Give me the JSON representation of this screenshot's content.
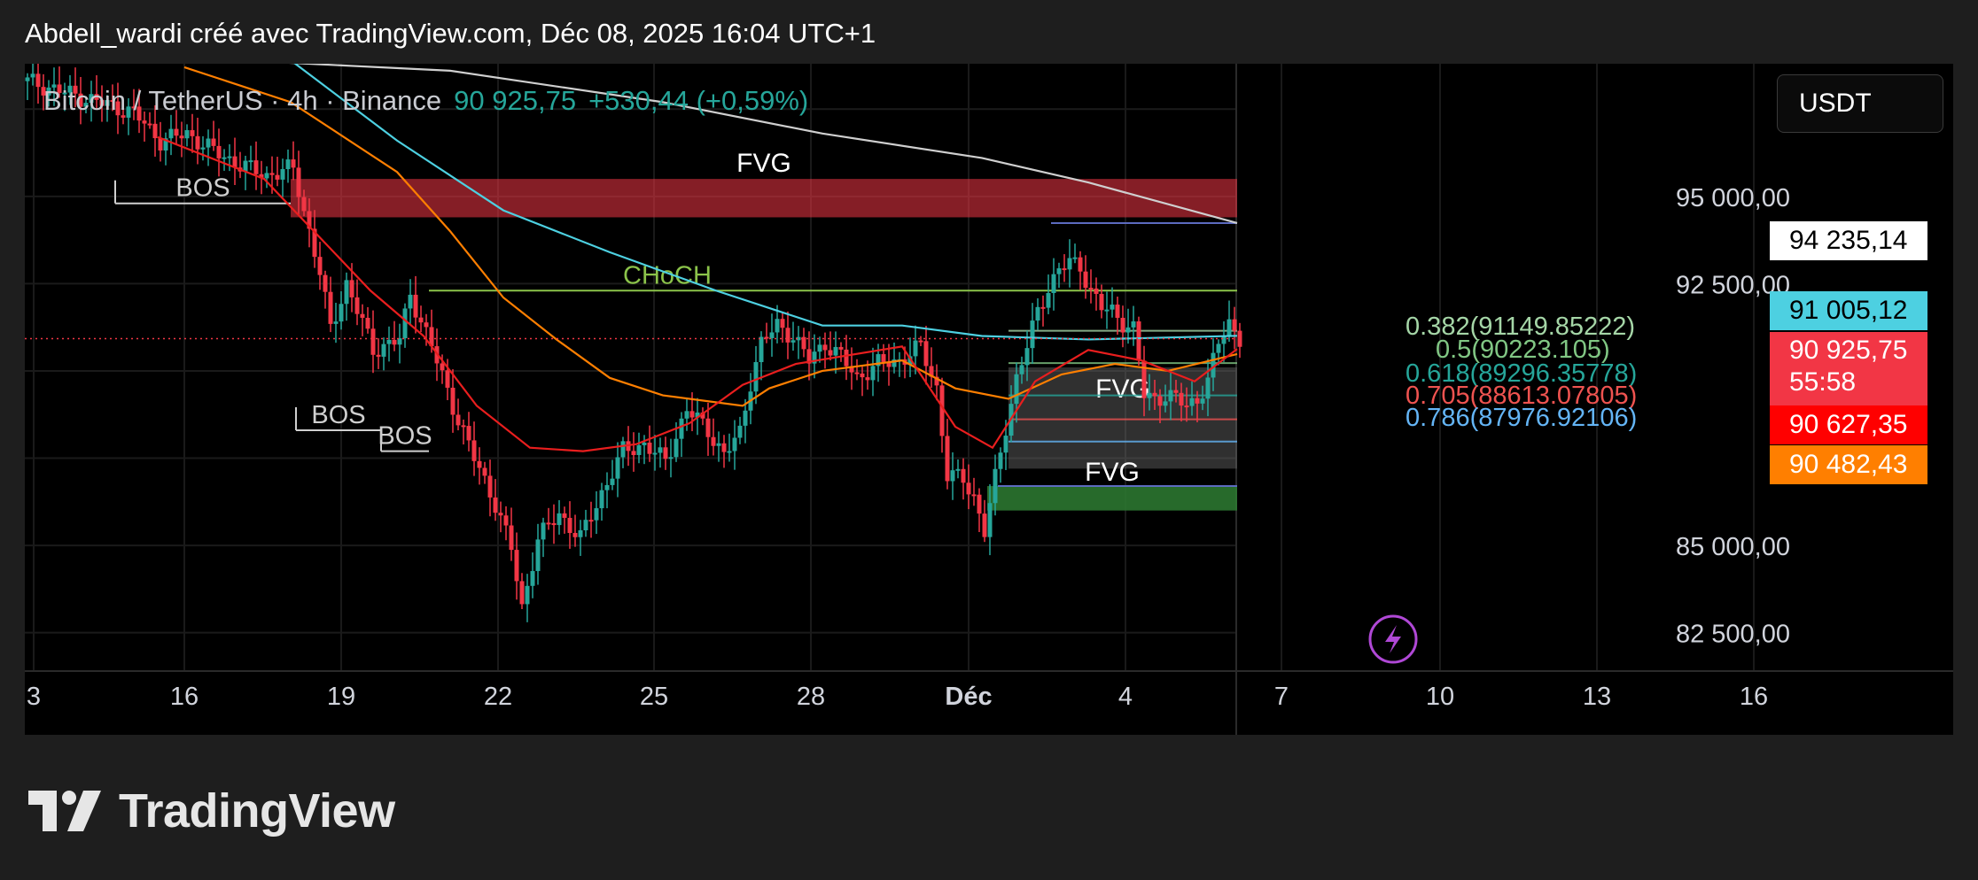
{
  "header": {
    "title": "Abdell_wardi créé avec TradingView.com, Déc 08, 2025 16:04 UTC+1"
  },
  "symbol": {
    "name": "Bitcoin / TetherUS · 4h · Binance",
    "price": "90 925,75",
    "change": "+530,44 (+0,59%)"
  },
  "currency_button": "USDT",
  "brand": {
    "name": "TradingView"
  },
  "price_labels": [
    {
      "text": "94 235,14",
      "bg": "#ffffff",
      "fg": "#000000"
    },
    {
      "text": "91 005,12",
      "bg": "#4dd0e1",
      "fg": "#000000"
    },
    {
      "text": "90 925,75",
      "bg": "#f23645",
      "fg": "#ffffff"
    },
    {
      "text": "55:58",
      "bg": "#f23645",
      "fg": "#ffffff"
    },
    {
      "text": "90 627,35",
      "bg": "#ff0000",
      "fg": "#ffffff"
    },
    {
      "text": "90 482,43",
      "bg": "#ff7f00",
      "fg": "#ffffff"
    }
  ],
  "chart_data": {
    "type": "candlestick",
    "timeframe": "4h",
    "x_tick_labels": [
      "3",
      "16",
      "19",
      "22",
      "25",
      "28",
      "Déc",
      "4",
      "7",
      "10",
      "13",
      "16"
    ],
    "y_tick_labels": [
      "95 000,00",
      "92 500,00",
      "85 000,00",
      "82 500,00"
    ],
    "y_ticks": [
      95000,
      92500,
      85000,
      82500
    ],
    "ylim": [
      81400,
      98800
    ],
    "grid": true,
    "current_price": 90925.75,
    "colors": {
      "up": "#26a69a",
      "down": "#f23645"
    },
    "candles_close_path": [
      [
        0,
        98300
      ],
      [
        20,
        97400
      ],
      [
        25,
        96600
      ],
      [
        30,
        96800
      ],
      [
        35,
        96300
      ],
      [
        40,
        95900
      ],
      [
        45,
        95600
      ],
      [
        50,
        95800
      ],
      [
        52,
        94600
      ],
      [
        55,
        92800
      ],
      [
        57,
        91200
      ],
      [
        60,
        92500
      ],
      [
        65,
        90600
      ],
      [
        70,
        90900
      ],
      [
        72,
        92200
      ],
      [
        76,
        90700
      ],
      [
        80,
        89000
      ],
      [
        84,
        87500
      ],
      [
        88,
        86200
      ],
      [
        91,
        84900
      ],
      [
        93,
        83200
      ],
      [
        96,
        85200
      ],
      [
        100,
        85900
      ],
      [
        104,
        85200
      ],
      [
        108,
        86500
      ],
      [
        112,
        87700
      ],
      [
        116,
        87900
      ],
      [
        120,
        87400
      ],
      [
        124,
        88900
      ],
      [
        128,
        88300
      ],
      [
        131,
        87600
      ],
      [
        134,
        88200
      ],
      [
        136,
        89700
      ],
      [
        138,
        90800
      ],
      [
        141,
        91300
      ],
      [
        144,
        91000
      ],
      [
        147,
        90300
      ],
      [
        150,
        90800
      ],
      [
        153,
        90400
      ],
      [
        156,
        89800
      ],
      [
        160,
        90200
      ],
      [
        164,
        90300
      ],
      [
        168,
        90700
      ],
      [
        171,
        89500
      ],
      [
        173,
        87000
      ],
      [
        176,
        86900
      ],
      [
        178,
        86400
      ],
      [
        180,
        85400
      ],
      [
        182,
        86900
      ],
      [
        184,
        88400
      ],
      [
        186,
        89800
      ],
      [
        188,
        90700
      ],
      [
        190,
        91700
      ],
      [
        192,
        92400
      ],
      [
        194,
        92900
      ],
      [
        196,
        93100
      ],
      [
        198,
        93000
      ],
      [
        200,
        92300
      ],
      [
        202,
        91800
      ],
      [
        204,
        91700
      ],
      [
        206,
        91400
      ],
      [
        208,
        91200
      ],
      [
        210,
        89300
      ],
      [
        212,
        89200
      ],
      [
        214,
        89300
      ],
      [
        216,
        89200
      ],
      [
        218,
        89000
      ],
      [
        220,
        89200
      ],
      [
        222,
        89700
      ],
      [
        224,
        90800
      ],
      [
        226,
        91400
      ],
      [
        228,
        90926
      ]
    ],
    "moving_averages": [
      {
        "color": "#cfcfcf",
        "points": [
          [
            40,
            98900
          ],
          [
            80,
            98600
          ],
          [
            120,
            97700
          ],
          [
            150,
            96800
          ],
          [
            180,
            96100
          ],
          [
            200,
            95400
          ],
          [
            228,
            94235
          ]
        ]
      },
      {
        "color": "#4dd0e1",
        "points": [
          [
            50,
            98900
          ],
          [
            70,
            96600
          ],
          [
            90,
            94600
          ],
          [
            110,
            93400
          ],
          [
            130,
            92300
          ],
          [
            150,
            91300
          ],
          [
            165,
            91300
          ],
          [
            180,
            91000
          ],
          [
            200,
            90900
          ],
          [
            228,
            91005
          ]
        ]
      },
      {
        "color": "#ff7f00",
        "points": [
          [
            30,
            98700
          ],
          [
            50,
            97700
          ],
          [
            70,
            95700
          ],
          [
            80,
            94000
          ],
          [
            90,
            92100
          ],
          [
            100,
            90900
          ],
          [
            110,
            89800
          ],
          [
            120,
            89300
          ],
          [
            135,
            89000
          ],
          [
            140,
            89500
          ],
          [
            150,
            90000
          ],
          [
            165,
            90300
          ],
          [
            175,
            89500
          ],
          [
            185,
            89200
          ],
          [
            195,
            89900
          ],
          [
            205,
            90200
          ],
          [
            215,
            90000
          ],
          [
            228,
            90482
          ]
        ]
      },
      {
        "color": "#e91e1e",
        "points": [
          [
            25,
            96700
          ],
          [
            45,
            95500
          ],
          [
            65,
            92300
          ],
          [
            75,
            91000
          ],
          [
            85,
            89000
          ],
          [
            95,
            87800
          ],
          [
            105,
            87700
          ],
          [
            115,
            87900
          ],
          [
            125,
            88500
          ],
          [
            135,
            89600
          ],
          [
            145,
            90200
          ],
          [
            165,
            90700
          ],
          [
            175,
            88400
          ],
          [
            182,
            87800
          ],
          [
            190,
            89700
          ],
          [
            200,
            90600
          ],
          [
            210,
            90300
          ],
          [
            220,
            89700
          ],
          [
            228,
            90627
          ]
        ]
      }
    ],
    "annotations": [
      {
        "text": "FVG",
        "color": "#ffffff",
        "zone": [
          94400,
          95500
        ],
        "x_range": [
          50,
          228
        ],
        "zone_color": "#f23645"
      },
      {
        "text": "CHoCH",
        "color": "#8bc34a",
        "level": 92300,
        "x_range": [
          76,
          228
        ]
      },
      {
        "text": "BOS",
        "color": "#cfcfcf",
        "level": 94800,
        "x_range": [
          17,
          50
        ]
      },
      {
        "text": "BOS",
        "color": "#cfcfcf",
        "level": 88300,
        "x_range": [
          51,
          67
        ]
      },
      {
        "text": "BOS",
        "color": "#cfcfcf",
        "level": 87700,
        "x_range": [
          67,
          76
        ]
      },
      {
        "text": "FVG",
        "color": "#ffffff",
        "zone": [
          87200,
          90100
        ],
        "x_range": [
          185,
          228
        ],
        "zone_color": "#6b6b6b"
      },
      {
        "text": "FVG",
        "color": "#ffffff",
        "zone": [
          86000,
          86700
        ],
        "x_range": [
          181,
          228
        ],
        "zone_color": "#2e7d32"
      }
    ],
    "fibonacci": [
      {
        "label": "0.382(91149.85222)",
        "value": 91149.85222,
        "color": "#a5d6a7"
      },
      {
        "label": "0.5(90223.105)",
        "value": 90223.105,
        "color": "#81c784"
      },
      {
        "label": "0.618(89296.35778)",
        "value": 89296.35778,
        "color": "#26a69a"
      },
      {
        "label": "0.705(88613.07805)",
        "value": 88613.07805,
        "color": "#ef5350"
      },
      {
        "label": "0.786(87976.92106)",
        "value": 87976.92106,
        "color": "#64b5f6"
      }
    ],
    "horizontal_levels": [
      {
        "value": 94235.14,
        "color": "#5c6bc0",
        "x_range": [
          193,
          228
        ]
      },
      {
        "value": 86700,
        "color": "#5c6bc0",
        "x_range": [
          183,
          228
        ]
      }
    ]
  }
}
